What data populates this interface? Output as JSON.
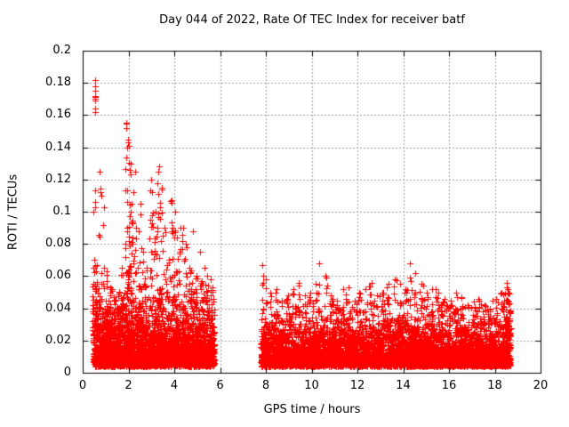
{
  "window": {
    "background": "#ffffff"
  },
  "decoration": {
    "blue_bar_color": "#2d41cf"
  },
  "chart_data": {
    "type": "scatter",
    "title": "Day 044 of 2022, Rate Of TEC Index for receiver batf",
    "xlabel": "GPS time / hours",
    "ylabel": "ROTI / TECUs",
    "xlim": [
      0,
      20
    ],
    "ylim": [
      0,
      0.2
    ],
    "xticks": [
      0,
      2,
      4,
      6,
      8,
      10,
      12,
      14,
      16,
      18,
      20
    ],
    "xtick_labels": [
      "0",
      "2",
      "4",
      "6",
      "8",
      "10",
      "12",
      "14",
      "16",
      "18",
      "20"
    ],
    "yticks": [
      0,
      0.02,
      0.04,
      0.06,
      0.08,
      0.1,
      0.12,
      0.14,
      0.16,
      0.18,
      0.2
    ],
    "ytick_labels": [
      "0",
      "0.02",
      "0.04",
      "0.06",
      "0.08",
      "0.1",
      "0.12",
      "0.14",
      "0.16",
      "0.18",
      "0.2"
    ],
    "grid": {
      "show": true,
      "style": "dashed",
      "color": "#a0a0a0"
    },
    "axis_color": "#000000",
    "legend": "none",
    "marker": {
      "shape": "plus",
      "size": 7,
      "color": "#ff0000"
    },
    "series_name": "ROTI",
    "scatter": {
      "seed": 44,
      "data_gap_hours": [
        5.75,
        7.78
      ],
      "segments": [
        {
          "x_range": [
            0.45,
            5.75
          ],
          "n_baseline": 3200,
          "baseline_floor": 0.004,
          "baseline_mean": 0.011,
          "baseline_cap": 0.055,
          "bump_floor": 0.026,
          "bumps": [
            [
              0.5,
              0.07,
              22
            ],
            [
              0.55,
              0.113,
              4
            ],
            [
              0.62,
              0.055,
              16
            ],
            [
              0.75,
              0.125,
              6
            ],
            [
              0.82,
              0.11,
              5
            ],
            [
              0.95,
              0.065,
              12
            ],
            [
              1.1,
              0.045,
              14
            ],
            [
              1.3,
              0.052,
              12
            ],
            [
              1.45,
              0.04,
              10
            ],
            [
              1.6,
              0.05,
              12
            ],
            [
              1.75,
              0.065,
              14
            ],
            [
              1.9,
              0.155,
              22
            ],
            [
              2.0,
              0.145,
              26
            ],
            [
              2.1,
              0.13,
              20
            ],
            [
              2.2,
              0.112,
              16
            ],
            [
              2.35,
              0.09,
              14
            ],
            [
              2.5,
              0.105,
              12
            ],
            [
              2.65,
              0.075,
              10
            ],
            [
              2.8,
              0.065,
              12
            ],
            [
              3.0,
              0.12,
              18
            ],
            [
              3.15,
              0.1,
              14
            ],
            [
              3.3,
              0.125,
              22
            ],
            [
              3.45,
              0.115,
              18
            ],
            [
              3.6,
              0.09,
              12
            ],
            [
              3.75,
              0.07,
              10
            ],
            [
              3.9,
              0.107,
              16
            ],
            [
              4.05,
              0.1,
              14
            ],
            [
              4.2,
              0.075,
              10
            ],
            [
              4.35,
              0.09,
              14
            ],
            [
              4.5,
              0.08,
              10
            ],
            [
              4.65,
              0.065,
              10
            ],
            [
              4.8,
              0.088,
              8
            ],
            [
              5.0,
              0.06,
              10
            ],
            [
              5.15,
              0.075,
              10
            ],
            [
              5.3,
              0.065,
              8
            ],
            [
              5.45,
              0.06,
              10
            ],
            [
              5.6,
              0.058,
              8
            ]
          ]
        },
        {
          "x_range": [
            7.78,
            18.68
          ],
          "n_baseline": 6200,
          "baseline_floor": 0.004,
          "baseline_mean": 0.008,
          "baseline_cap": 0.045,
          "bump_floor": 0.022,
          "bumps": [
            [
              7.85,
              0.067,
              10
            ],
            [
              8.0,
              0.058,
              12
            ],
            [
              8.2,
              0.05,
              10
            ],
            [
              8.45,
              0.052,
              12
            ],
            [
              8.7,
              0.045,
              10
            ],
            [
              8.95,
              0.048,
              10
            ],
            [
              9.2,
              0.052,
              12
            ],
            [
              9.45,
              0.056,
              12
            ],
            [
              9.7,
              0.048,
              10
            ],
            [
              9.95,
              0.05,
              10
            ],
            [
              10.2,
              0.055,
              12
            ],
            [
              10.35,
              0.068,
              8
            ],
            [
              10.6,
              0.06,
              12
            ],
            [
              10.85,
              0.048,
              10
            ],
            [
              11.1,
              0.045,
              10
            ],
            [
              11.35,
              0.052,
              12
            ],
            [
              11.6,
              0.053,
              12
            ],
            [
              11.85,
              0.045,
              10
            ],
            [
              12.1,
              0.05,
              10
            ],
            [
              12.35,
              0.052,
              12
            ],
            [
              12.6,
              0.056,
              12
            ],
            [
              12.85,
              0.048,
              10
            ],
            [
              13.1,
              0.05,
              10
            ],
            [
              13.35,
              0.055,
              12
            ],
            [
              13.6,
              0.058,
              14
            ],
            [
              13.85,
              0.055,
              12
            ],
            [
              14.1,
              0.052,
              12
            ],
            [
              14.3,
              0.068,
              10
            ],
            [
              14.55,
              0.062,
              14
            ],
            [
              14.8,
              0.055,
              12
            ],
            [
              15.05,
              0.05,
              10
            ],
            [
              15.3,
              0.052,
              10
            ],
            [
              15.55,
              0.05,
              10
            ],
            [
              15.8,
              0.046,
              10
            ],
            [
              16.05,
              0.045,
              10
            ],
            [
              16.3,
              0.05,
              12
            ],
            [
              16.55,
              0.047,
              10
            ],
            [
              16.8,
              0.042,
              8
            ],
            [
              17.05,
              0.044,
              10
            ],
            [
              17.3,
              0.046,
              10
            ],
            [
              17.55,
              0.042,
              8
            ],
            [
              17.8,
              0.04,
              8
            ],
            [
              18.05,
              0.046,
              10
            ],
            [
              18.3,
              0.05,
              12
            ],
            [
              18.5,
              0.056,
              14
            ],
            [
              18.62,
              0.05,
              40
            ]
          ]
        }
      ],
      "feature_points": [
        [
          0.54,
          0.182
        ],
        [
          0.55,
          0.178
        ],
        [
          0.54,
          0.175
        ],
        [
          0.55,
          0.172
        ],
        [
          0.54,
          0.171
        ],
        [
          0.56,
          0.17
        ],
        [
          0.55,
          0.169
        ],
        [
          0.54,
          0.164
        ],
        [
          0.56,
          0.162
        ],
        [
          0.55,
          0.113
        ],
        [
          0.56,
          0.103
        ],
        [
          0.45,
          0.1
        ],
        [
          0.47,
          0.055
        ],
        [
          1.9,
          0.152
        ],
        [
          1.97,
          0.143
        ],
        [
          2.3,
          0.125
        ],
        [
          3.35,
          0.128
        ]
      ]
    }
  }
}
